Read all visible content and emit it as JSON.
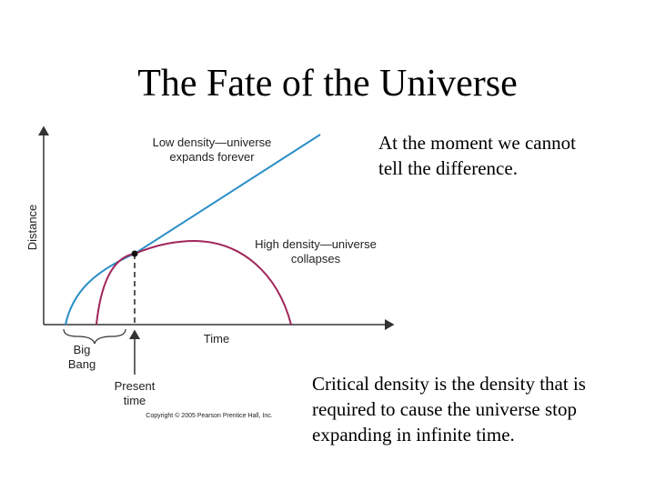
{
  "title": "The Fate of the Universe",
  "diagram": {
    "y_axis_label": "Distance",
    "x_axis_label": "Time",
    "low_density_label": [
      "Low density—universe",
      "expands forever"
    ],
    "high_density_label": [
      "High density—universe",
      "collapses"
    ],
    "big_bang_label": [
      "Big",
      "Bang"
    ],
    "present_label": [
      "Present",
      "time"
    ],
    "copyright": "Copyright © 2005 Pearson Prentice Hall, Inc."
  },
  "note_top": [
    "At the moment we cannot",
    "tell the difference."
  ],
  "note_bottom": [
    "Critical density is the density that is",
    "required to cause the universe stop",
    "expanding in infinite time."
  ]
}
